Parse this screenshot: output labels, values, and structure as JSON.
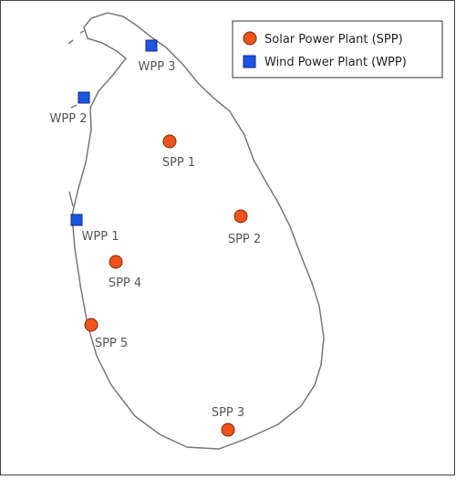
{
  "legend": {
    "items": [
      {
        "label": "Solar Power Plant (SPP)"
      },
      {
        "label": "Wind Power Plant (WPP)"
      }
    ]
  },
  "sites": [
    {
      "label": "SPP 1"
    },
    {
      "label": "SPP 2"
    },
    {
      "label": "SPP 3"
    },
    {
      "label": "SPP 4"
    },
    {
      "label": "SPP 5"
    },
    {
      "label": "WPP 1"
    },
    {
      "label": "WPP 2"
    },
    {
      "label": "WPP 3"
    }
  ]
}
